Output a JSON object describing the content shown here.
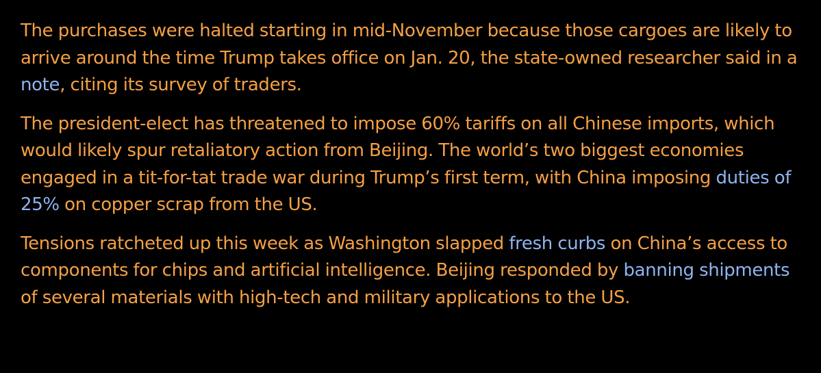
{
  "theme": {
    "background": "#000000",
    "text_color": "#f5a045",
    "link_color": "#8fb4f0"
  },
  "article": {
    "paragraphs": [
      {
        "segments": [
          {
            "text": "The purchases were halted starting in mid-November because those cargoes are likely to arrive around the time Trump takes office on Jan. 20, the state-owned researcher said in a ",
            "link": false
          },
          {
            "text": "note",
            "link": true
          },
          {
            "text": ", citing its survey of traders.",
            "link": false
          }
        ]
      },
      {
        "segments": [
          {
            "text": "The president-elect has threatened to impose 60% tariffs on all Chinese imports, which would likely spur retaliatory action from Beijing. The world’s two biggest economies engaged in a tit-for-tat trade war during Trump’s first term, with China imposing ",
            "link": false
          },
          {
            "text": "duties of 25%",
            "link": true
          },
          {
            "text": " on copper scrap from the US.",
            "link": false
          }
        ]
      },
      {
        "segments": [
          {
            "text": "Tensions ratcheted up this week as Washington slapped ",
            "link": false
          },
          {
            "text": "fresh curbs",
            "link": true
          },
          {
            "text": " on China’s access to components for chips and artificial intelligence. Beijing responded by ",
            "link": false
          },
          {
            "text": "banning shipments",
            "link": true
          },
          {
            "text": " of several materials with high-tech and military applications to the US.",
            "link": false
          }
        ]
      }
    ]
  }
}
